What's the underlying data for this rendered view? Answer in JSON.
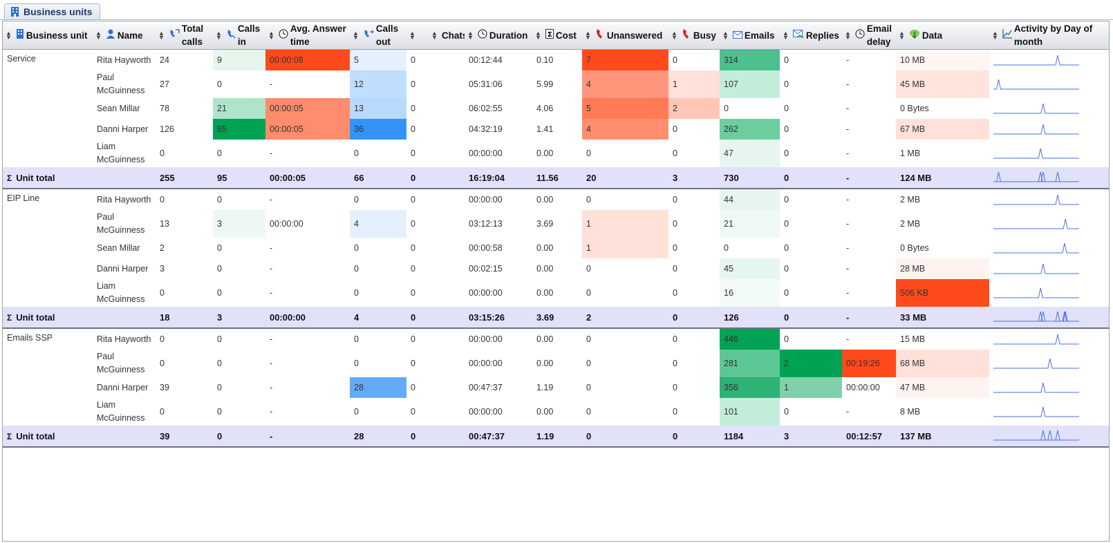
{
  "tab": {
    "label": "Business units"
  },
  "columns": [
    {
      "key": "unit",
      "label": "Business unit",
      "icon": "building-icon"
    },
    {
      "key": "name",
      "label": "Name",
      "icon": "person-icon"
    },
    {
      "key": "total",
      "label": "Total calls",
      "icon": "phone-transfer-icon"
    },
    {
      "key": "in",
      "label": "Calls in",
      "icon": "phone-in-icon"
    },
    {
      "key": "aat",
      "label": "Avg. Answer time",
      "icon": "clock-icon"
    },
    {
      "key": "out",
      "label": "Calls out",
      "icon": "phone-out-icon"
    },
    {
      "key": "x",
      "label": "",
      "icon": ""
    },
    {
      "key": "chats",
      "label": "Chats",
      "icon": ""
    },
    {
      "key": "dur",
      "label": "Duration",
      "icon": "clock-icon"
    },
    {
      "key": "cost",
      "label": "Cost",
      "icon": "sum-doc-icon"
    },
    {
      "key": "unans",
      "label": "Unanswered",
      "icon": "red-phone-icon"
    },
    {
      "key": "busy",
      "label": "Busy",
      "icon": "red-phone-icon"
    },
    {
      "key": "emails",
      "label": "Emails",
      "icon": "envelope-icon"
    },
    {
      "key": "replies",
      "label": "Replies",
      "icon": "reply-envelope-icon"
    },
    {
      "key": "edelay",
      "label": "Email delay",
      "icon": "clock-icon"
    },
    {
      "key": "data",
      "label": "Data",
      "icon": "download-icon"
    },
    {
      "key": "act",
      "label": "Activity by Day of month",
      "icon": "chart-icon"
    }
  ],
  "colors": {
    "green_dark": "#00a254",
    "orange_dark": "#ff4b1b",
    "blue_dark": "#3393f7",
    "total_row": "#e1e1fa",
    "spark": "#4a6fe0"
  },
  "groups": [
    {
      "unit": "Service",
      "rows": [
        {
          "name": "Rita Hayworth",
          "total": "24",
          "in": "9",
          "aat": "00:00:08",
          "out": "5",
          "x": "0",
          "chats": "",
          "dur": "00:12:44",
          "cost": "0.10",
          "unans": "7",
          "busy": "0",
          "emails": "314",
          "replies": "0",
          "edelay": "-",
          "data": "10 MB",
          "bg": {
            "in": "#e6f6ec",
            "aat": "#ff4b1b",
            "out": "#e4f0fe",
            "unans": "#ff4b1b",
            "emails": "#4cc08e",
            "data": "#fff5f2"
          },
          "peak": 0.75
        },
        {
          "name": "Paul McGuinness",
          "total": "27",
          "in": "0",
          "aat": "-",
          "out": "12",
          "x": "0",
          "chats": "",
          "dur": "05:31:06",
          "cost": "5.99",
          "unans": "4",
          "busy": "1",
          "emails": "107",
          "replies": "0",
          "edelay": "-",
          "data": "45 MB",
          "bg": {
            "out": "#bfddfd",
            "unans": "#ff967b",
            "busy": "#ffe1d9",
            "emails": "#c3eddb",
            "data": "#ffe4dd"
          },
          "peak": 0.06
        },
        {
          "name": "Sean Millar",
          "total": "78",
          "in": "21",
          "aat": "00:00:05",
          "out": "13",
          "x": "0",
          "chats": "",
          "dur": "06:02:55",
          "cost": "4.06",
          "unans": "5",
          "busy": "2",
          "emails": "0",
          "replies": "0",
          "edelay": "-",
          "data": "0 Bytes",
          "bg": {
            "in": "#aee5ca",
            "aat": "#ff8c6c",
            "out": "#b9d9fc",
            "unans": "#ff7b55",
            "busy": "#ffc6b6"
          },
          "peak": 0.58
        },
        {
          "name": "Danni Harper",
          "total": "126",
          "in": "65",
          "aat": "00:00:05",
          "out": "36",
          "x": "0",
          "chats": "",
          "dur": "04:32:19",
          "cost": "1.41",
          "unans": "4",
          "busy": "0",
          "emails": "262",
          "replies": "0",
          "edelay": "-",
          "data": "67 MB",
          "bg": {
            "in": "#00a254",
            "aat": "#ff8c6c",
            "out": "#3393f7",
            "unans": "#ff8e70",
            "emails": "#6ccd9f",
            "data": "#ffe1d9"
          },
          "peak": 0.58
        },
        {
          "name": "Liam McGuinness",
          "total": "0",
          "in": "0",
          "aat": "-",
          "out": "0",
          "x": "0",
          "chats": "",
          "dur": "00:00:00",
          "cost": "0.00",
          "unans": "0",
          "busy": "0",
          "emails": "47",
          "replies": "0",
          "edelay": "-",
          "data": "1 MB",
          "bg": {
            "emails": "#e6f6ee"
          },
          "peak": 0.55
        }
      ],
      "total": {
        "label": "Unit total",
        "total": "255",
        "in": "95",
        "aat": "00:00:05",
        "out": "66",
        "x": "0",
        "chats": "",
        "dur": "16:19:04",
        "cost": "11.56",
        "unans": "20",
        "busy": "3",
        "emails": "730",
        "replies": "0",
        "edelay": "-",
        "data": "124 MB"
      }
    },
    {
      "unit": "EIP Line",
      "rows": [
        {
          "name": "Rita Hayworth",
          "total": "0",
          "in": "0",
          "aat": "-",
          "out": "0",
          "x": "0",
          "chats": "",
          "dur": "00:00:00",
          "cost": "0.00",
          "unans": "0",
          "busy": "0",
          "emails": "44",
          "replies": "0",
          "edelay": "-",
          "data": "2 MB",
          "bg": {
            "emails": "#e6f6ee"
          },
          "peak": 0.75
        },
        {
          "name": "Paul McGuinness",
          "total": "13",
          "in": "3",
          "aat": "00:00:00",
          "out": "4",
          "x": "0",
          "chats": "",
          "dur": "03:12:13",
          "cost": "3.69",
          "unans": "1",
          "busy": "0",
          "emails": "21",
          "replies": "0",
          "edelay": "-",
          "data": "2 MB",
          "bg": {
            "in": "#edf8f2",
            "out": "#e4f0fe",
            "unans": "#ffe1d9",
            "emails": "#eef9f3"
          },
          "peak": 0.84
        },
        {
          "name": "Sean Millar",
          "total": "2",
          "in": "0",
          "aat": "-",
          "out": "0",
          "x": "0",
          "chats": "",
          "dur": "00:00:58",
          "cost": "0.00",
          "unans": "1",
          "busy": "0",
          "emails": "0",
          "replies": "0",
          "edelay": "-",
          "data": "0 Bytes",
          "bg": {
            "unans": "#ffe1d9"
          },
          "peak": 0.83
        },
        {
          "name": "Danni Harper",
          "total": "3",
          "in": "0",
          "aat": "-",
          "out": "0",
          "x": "0",
          "chats": "",
          "dur": "00:02:15",
          "cost": "0.00",
          "unans": "0",
          "busy": "0",
          "emails": "45",
          "replies": "0",
          "edelay": "-",
          "data": "28 MB",
          "bg": {
            "emails": "#e6f6ee",
            "data": "#fff3ef"
          },
          "peak": 0.58
        },
        {
          "name": "Liam McGuinness",
          "total": "0",
          "in": "0",
          "aat": "-",
          "out": "0",
          "x": "0",
          "chats": "",
          "dur": "00:00:00",
          "cost": "0.00",
          "unans": "0",
          "busy": "0",
          "emails": "16",
          "replies": "0",
          "edelay": "-",
          "data": "506 KB",
          "bg": {
            "emails": "#f3fbf7",
            "data": "#ff4b1b"
          },
          "peak": 0.55
        }
      ],
      "total": {
        "label": "Unit total",
        "total": "18",
        "in": "3",
        "aat": "00:00:00",
        "out": "4",
        "x": "0",
        "chats": "",
        "dur": "03:15:26",
        "cost": "3.69",
        "unans": "2",
        "busy": "0",
        "emails": "126",
        "replies": "0",
        "edelay": "-",
        "data": "33 MB"
      }
    },
    {
      "unit": "Emails SSP",
      "rows": [
        {
          "name": "Rita Hayworth",
          "total": "0",
          "in": "0",
          "aat": "-",
          "out": "0",
          "x": "0",
          "chats": "",
          "dur": "00:00:00",
          "cost": "0.00",
          "unans": "0",
          "busy": "0",
          "emails": "446",
          "replies": "0",
          "edelay": "-",
          "data": "15 MB",
          "bg": {
            "emails": "#00a254"
          },
          "peak": 0.75
        },
        {
          "name": "Paul McGuinness",
          "total": "0",
          "in": "0",
          "aat": "-",
          "out": "0",
          "x": "0",
          "chats": "",
          "dur": "00:00:00",
          "cost": "0.00",
          "unans": "0",
          "busy": "0",
          "emails": "281",
          "replies": "2",
          "edelay": "00:19:26",
          "data": "68 MB",
          "bg": {
            "emails": "#5cc795",
            "replies": "#00a254",
            "edelay": "#ff4b1b",
            "data": "#ffe1d9"
          },
          "peak": 0.66
        },
        {
          "name": "Danni Harper",
          "total": "39",
          "in": "0",
          "aat": "-",
          "out": "28",
          "x": "0",
          "chats": "",
          "dur": "00:47:37",
          "cost": "1.19",
          "unans": "0",
          "busy": "0",
          "emails": "356",
          "replies": "1",
          "edelay": "00:00:00",
          "data": "47 MB",
          "bg": {
            "out": "#63abf9",
            "emails": "#2db274",
            "replies": "#80d1aa",
            "data": "#fff3ef"
          },
          "peak": 0.58
        },
        {
          "name": "Liam McGuinness",
          "total": "0",
          "in": "0",
          "aat": "-",
          "out": "0",
          "x": "0",
          "chats": "",
          "dur": "00:00:00",
          "cost": "0.00",
          "unans": "0",
          "busy": "0",
          "emails": "101",
          "replies": "0",
          "edelay": "-",
          "data": "8 MB",
          "bg": {
            "emails": "#c3eddb"
          },
          "peak": 0.58
        }
      ],
      "total": {
        "label": "Unit total",
        "total": "39",
        "in": "0",
        "aat": "-",
        "out": "28",
        "x": "0",
        "chats": "",
        "dur": "00:47:37",
        "cost": "1.19",
        "unans": "0",
        "busy": "0",
        "emails": "1184",
        "replies": "3",
        "edelay": "00:12:57",
        "data": "137 MB"
      }
    }
  ]
}
